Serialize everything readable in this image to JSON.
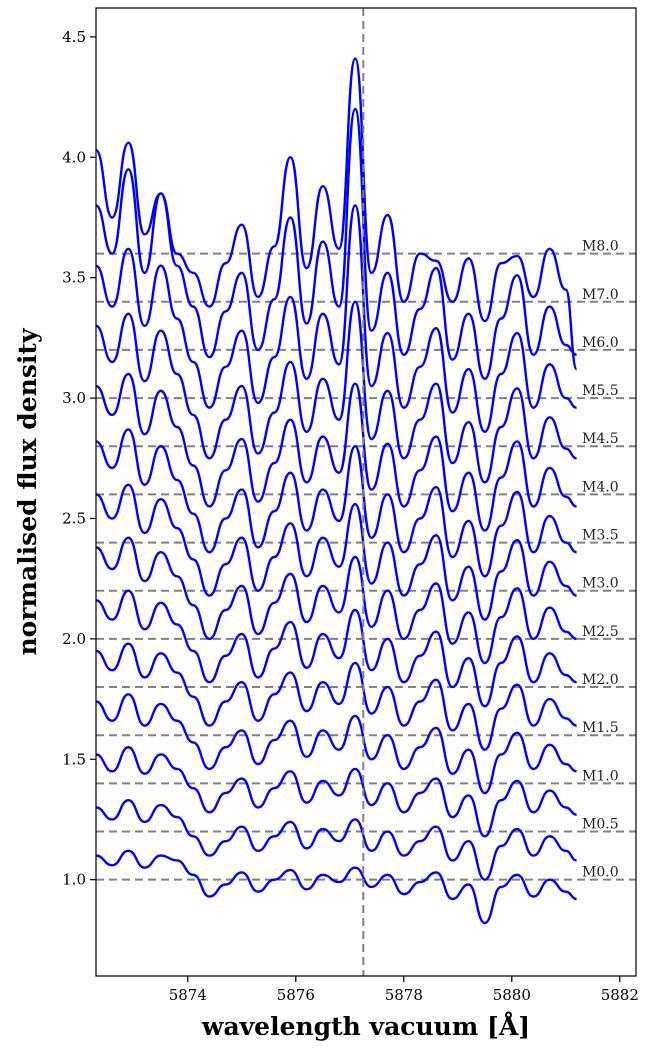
{
  "chart_data": {
    "type": "line",
    "xlabel": "wavelength vacuum [Å]",
    "ylabel": "normalised flux density",
    "xlim": [
      5872.3,
      5882.3
    ],
    "ylim": [
      0.6,
      4.62
    ],
    "x_ticks": [
      5874,
      5876,
      5878,
      5880,
      5882
    ],
    "x_tick_labels": [
      "5874",
      "5876",
      "5878",
      "5880",
      "5882"
    ],
    "y_ticks": [
      1.0,
      1.5,
      2.0,
      2.5,
      3.0,
      3.5,
      4.0,
      4.5
    ],
    "y_tick_labels": [
      "1.0",
      "1.5",
      "2.0",
      "2.5",
      "3.0",
      "3.5",
      "4.0",
      "4.5"
    ],
    "grid": false,
    "line_color": "#0000ff",
    "reference_line_color": "#808080",
    "vertical_reference": {
      "x": 5877.25,
      "style": "dashed"
    },
    "reference_levels": [
      {
        "label": "M0.0",
        "y": 1.0
      },
      {
        "label": "M0.5",
        "y": 1.2
      },
      {
        "label": "M1.0",
        "y": 1.4
      },
      {
        "label": "M1.5",
        "y": 1.6
      },
      {
        "label": "M2.0",
        "y": 1.8
      },
      {
        "label": "M2.5",
        "y": 2.0
      },
      {
        "label": "M3.0",
        "y": 2.2
      },
      {
        "label": "M3.5",
        "y": 2.4
      },
      {
        "label": "M4.0",
        "y": 2.6
      },
      {
        "label": "M4.5",
        "y": 2.8
      },
      {
        "label": "M5.5",
        "y": 3.0
      },
      {
        "label": "M6.0",
        "y": 3.2
      },
      {
        "label": "M7.0",
        "y": 3.4
      },
      {
        "label": "M8.0",
        "y": 3.6
      }
    ],
    "series_x": [
      5872.3,
      5872.6,
      5872.9,
      5873.2,
      5873.5,
      5873.8,
      5874.1,
      5874.4,
      5874.7,
      5875.0,
      5875.3,
      5875.6,
      5875.9,
      5876.2,
      5876.5,
      5876.8,
      5877.1,
      5877.4,
      5877.7,
      5878.0,
      5878.3,
      5878.6,
      5878.9,
      5879.2,
      5879.5,
      5879.8,
      5880.1,
      5880.4,
      5880.7,
      5881.0,
      5881.2
    ],
    "series": [
      {
        "values": [
          1.1,
          1.06,
          1.12,
          1.05,
          1.1,
          1.08,
          1.02,
          0.93,
          0.98,
          1.03,
          0.95,
          1.0,
          1.04,
          0.96,
          1.02,
          0.99,
          1.05,
          0.97,
          1.02,
          0.94,
          0.99,
          1.03,
          0.92,
          0.98,
          0.82,
          0.97,
          1.02,
          0.93,
          1.0,
          0.95,
          0.92
        ]
      },
      {
        "values": [
          1.3,
          1.25,
          1.33,
          1.24,
          1.31,
          1.26,
          1.18,
          1.1,
          1.16,
          1.22,
          1.12,
          1.18,
          1.24,
          1.13,
          1.21,
          1.16,
          1.25,
          1.12,
          1.2,
          1.1,
          1.16,
          1.22,
          1.08,
          1.16,
          1.0,
          1.14,
          1.21,
          1.1,
          1.18,
          1.12,
          1.08
        ]
      },
      {
        "values": [
          1.52,
          1.45,
          1.55,
          1.44,
          1.52,
          1.46,
          1.38,
          1.28,
          1.36,
          1.42,
          1.3,
          1.38,
          1.45,
          1.32,
          1.41,
          1.35,
          1.46,
          1.31,
          1.4,
          1.28,
          1.36,
          1.42,
          1.26,
          1.35,
          1.18,
          1.33,
          1.41,
          1.28,
          1.37,
          1.3,
          1.27
        ]
      },
      {
        "values": [
          1.74,
          1.66,
          1.77,
          1.64,
          1.73,
          1.66,
          1.57,
          1.46,
          1.55,
          1.62,
          1.48,
          1.58,
          1.66,
          1.51,
          1.62,
          1.54,
          1.68,
          1.5,
          1.6,
          1.46,
          1.55,
          1.63,
          1.44,
          1.54,
          1.36,
          1.52,
          1.61,
          1.46,
          1.56,
          1.48,
          1.45
        ]
      },
      {
        "values": [
          1.95,
          1.87,
          1.98,
          1.84,
          1.94,
          1.86,
          1.76,
          1.64,
          1.74,
          1.82,
          1.66,
          1.77,
          1.86,
          1.7,
          1.82,
          1.73,
          1.9,
          1.69,
          1.8,
          1.64,
          1.74,
          1.83,
          1.62,
          1.73,
          1.54,
          1.71,
          1.81,
          1.64,
          1.75,
          1.67,
          1.64
        ]
      },
      {
        "values": [
          2.16,
          2.08,
          2.2,
          2.04,
          2.15,
          2.06,
          1.95,
          1.82,
          1.93,
          2.02,
          1.84,
          1.96,
          2.07,
          1.88,
          2.02,
          1.92,
          2.12,
          1.87,
          2.0,
          1.82,
          1.93,
          2.03,
          1.8,
          1.92,
          1.72,
          1.9,
          2.01,
          1.82,
          1.94,
          1.85,
          1.82
        ]
      },
      {
        "values": [
          2.38,
          2.29,
          2.42,
          2.24,
          2.36,
          2.26,
          2.14,
          2.0,
          2.12,
          2.22,
          2.02,
          2.15,
          2.27,
          2.07,
          2.22,
          2.11,
          2.34,
          2.05,
          2.2,
          2.0,
          2.12,
          2.23,
          1.98,
          2.11,
          1.9,
          2.09,
          2.21,
          2.0,
          2.13,
          2.03,
          2.0
        ]
      },
      {
        "values": [
          2.6,
          2.5,
          2.64,
          2.44,
          2.58,
          2.46,
          2.33,
          2.18,
          2.31,
          2.42,
          2.2,
          2.34,
          2.48,
          2.26,
          2.42,
          2.3,
          2.56,
          2.23,
          2.4,
          2.18,
          2.31,
          2.43,
          2.16,
          2.3,
          2.08,
          2.28,
          2.41,
          2.18,
          2.32,
          2.22,
          2.18
        ]
      },
      {
        "values": [
          2.82,
          2.71,
          2.87,
          2.64,
          2.8,
          2.66,
          2.52,
          2.36,
          2.5,
          2.62,
          2.38,
          2.53,
          2.69,
          2.45,
          2.62,
          2.49,
          2.8,
          2.42,
          2.6,
          2.36,
          2.5,
          2.63,
          2.34,
          2.49,
          2.26,
          2.47,
          2.61,
          2.36,
          2.51,
          2.4,
          2.36
        ]
      },
      {
        "values": [
          3.05,
          2.93,
          3.1,
          2.85,
          3.03,
          2.88,
          2.72,
          2.55,
          2.7,
          2.83,
          2.57,
          2.73,
          2.91,
          2.65,
          2.84,
          2.69,
          3.06,
          2.62,
          2.81,
          2.55,
          2.7,
          2.84,
          2.53,
          2.69,
          2.45,
          2.67,
          2.82,
          2.55,
          2.71,
          2.59,
          2.55
        ]
      },
      {
        "values": [
          3.3,
          3.15,
          3.35,
          3.07,
          3.28,
          3.1,
          2.93,
          2.75,
          2.91,
          3.05,
          2.77,
          2.94,
          3.15,
          2.86,
          3.08,
          2.91,
          3.4,
          2.83,
          3.03,
          2.75,
          2.91,
          3.06,
          2.73,
          2.9,
          2.65,
          2.88,
          3.04,
          2.75,
          2.92,
          2.79,
          2.75
        ]
      },
      {
        "values": [
          3.55,
          3.38,
          3.62,
          3.3,
          3.55,
          3.33,
          3.15,
          2.96,
          3.13,
          3.28,
          2.98,
          3.17,
          3.42,
          3.08,
          3.35,
          3.14,
          3.8,
          3.05,
          3.27,
          2.96,
          3.13,
          3.29,
          2.94,
          3.12,
          2.86,
          3.1,
          3.27,
          2.96,
          3.14,
          3.0,
          2.96
        ]
      },
      {
        "values": [
          3.8,
          3.6,
          3.95,
          3.52,
          3.85,
          3.55,
          3.38,
          3.17,
          3.36,
          3.52,
          3.2,
          3.41,
          3.75,
          3.31,
          3.65,
          3.38,
          4.2,
          3.28,
          3.52,
          3.18,
          3.37,
          3.54,
          3.16,
          3.35,
          3.08,
          3.33,
          3.51,
          3.18,
          3.38,
          3.22,
          3.18
        ]
      },
      {
        "values": [
          4.03,
          3.75,
          4.06,
          3.68,
          3.85,
          3.6,
          3.52,
          3.38,
          3.56,
          3.72,
          3.42,
          3.63,
          4.0,
          3.54,
          3.88,
          3.62,
          4.41,
          3.52,
          3.76,
          3.4,
          3.6,
          3.57,
          3.4,
          3.58,
          3.32,
          3.56,
          3.59,
          3.42,
          3.62,
          3.45,
          3.12
        ]
      }
    ]
  }
}
